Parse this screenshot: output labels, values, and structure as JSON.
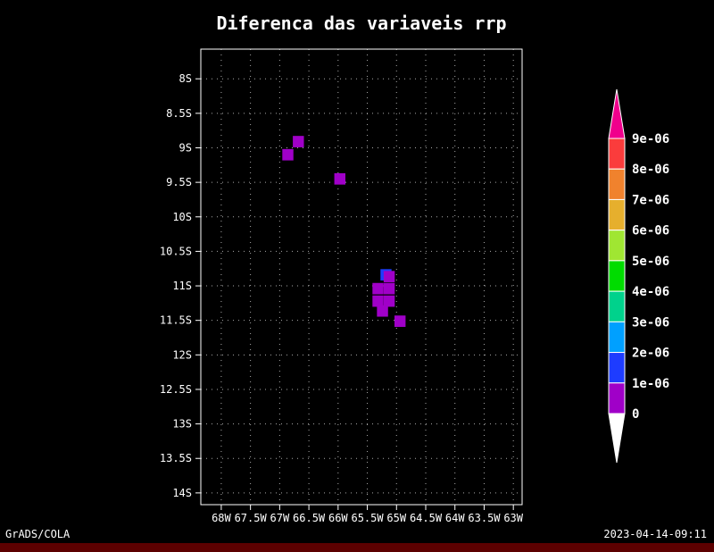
{
  "footer": {
    "left_text": "GrADS/COLA",
    "right_text": "2023-04-14-09:11"
  },
  "colors": {
    "background": "#000000",
    "foreground": "#ffffff",
    "grid": "#c8c8c8",
    "footer_bar": "#5c0000"
  },
  "chart_data": {
    "type": "heatmap",
    "title": "Diferenca das variaveis rrp",
    "xlabel": "",
    "ylabel": "",
    "grid": true,
    "legend_position": "right",
    "x_tick_labels": [
      "68W",
      "67.5W",
      "67W",
      "66.5W",
      "66W",
      "65.5W",
      "65W",
      "64.5W",
      "64W",
      "63.5W",
      "63W"
    ],
    "x_tick_lons": [
      -68,
      -67.5,
      -67,
      -66.5,
      -66,
      -65.5,
      -65,
      -64.5,
      -64,
      -63.5,
      -63
    ],
    "y_tick_labels": [
      "8S",
      "8.5S",
      "9S",
      "9.5S",
      "10S",
      "10.5S",
      "11S",
      "11.5S",
      "12S",
      "12.5S",
      "13S",
      "13.5S",
      "14S"
    ],
    "y_tick_lats": [
      -8,
      -8.5,
      -9,
      -9.5,
      -10,
      -10.5,
      -11,
      -11.5,
      -12,
      -12.5,
      -13,
      -13.5,
      -14
    ],
    "lon_range": [
      -68.35,
      -62.85
    ],
    "lat_range": [
      -14.17,
      -7.57
    ],
    "colorbar": {
      "tick_labels": [
        "9e-06",
        "8e-06",
        "7e-06",
        "6e-06",
        "5e-06",
        "4e-06",
        "3e-06",
        "2e-06",
        "1e-06",
        "0"
      ],
      "segments_top_to_bottom": [
        {
          "range": "> 9e-06",
          "color": "#f0008c",
          "shape": "arrow-up"
        },
        {
          "range": "8e-06 - 9e-06",
          "color": "#fa3c3c",
          "shape": "rect"
        },
        {
          "range": "7e-06 - 8e-06",
          "color": "#f0822d",
          "shape": "rect"
        },
        {
          "range": "6e-06 - 7e-06",
          "color": "#e6af2d",
          "shape": "rect"
        },
        {
          "range": "5e-06 - 6e-06",
          "color": "#a0e632",
          "shape": "rect"
        },
        {
          "range": "4e-06 - 5e-06",
          "color": "#00dc00",
          "shape": "rect"
        },
        {
          "range": "3e-06 - 4e-06",
          "color": "#00d28c",
          "shape": "rect"
        },
        {
          "range": "2e-06 - 3e-06",
          "color": "#00a0ff",
          "shape": "rect"
        },
        {
          "range": "1e-06 - 2e-06",
          "color": "#1e3cff",
          "shape": "rect"
        },
        {
          "range": "0 - 1e-06",
          "color": "#a000c8",
          "shape": "rect"
        },
        {
          "range": "< 0",
          "color": "#ffffff",
          "shape": "arrow-down"
        }
      ]
    },
    "cell_size_deg": {
      "lon": 0.19,
      "lat": 0.165
    },
    "cells": [
      {
        "lon": -66.86,
        "lat": -9.1,
        "range": "0 - 1e-06",
        "color": "#a000c8"
      },
      {
        "lon": -66.68,
        "lat": -8.91,
        "range": "0 - 1e-06",
        "color": "#a000c8"
      },
      {
        "lon": -65.97,
        "lat": -9.45,
        "range": "0 - 1e-06",
        "color": "#a000c8"
      },
      {
        "lon": -65.18,
        "lat": -10.84,
        "range": "1e-06 - 2e-06",
        "color": "#1e3cff"
      },
      {
        "lon": -65.125,
        "lat": -10.866,
        "range": "0 - 1e-06",
        "color": "#a000c8"
      },
      {
        "lon": -65.317,
        "lat": -11.04,
        "range": "0 - 1e-06",
        "color": "#a000c8"
      },
      {
        "lon": -65.125,
        "lat": -11.04,
        "range": "0 - 1e-06",
        "color": "#a000c8"
      },
      {
        "lon": -65.317,
        "lat": -11.221,
        "range": "0 - 1e-06",
        "color": "#a000c8"
      },
      {
        "lon": -65.125,
        "lat": -11.221,
        "range": "0 - 1e-06",
        "color": "#a000c8"
      },
      {
        "lon": -65.24,
        "lat": -11.364,
        "range": "0 - 1e-06",
        "color": "#a000c8"
      },
      {
        "lon": -64.94,
        "lat": -11.512,
        "range": "0 - 1e-06",
        "color": "#a000c8"
      }
    ]
  }
}
